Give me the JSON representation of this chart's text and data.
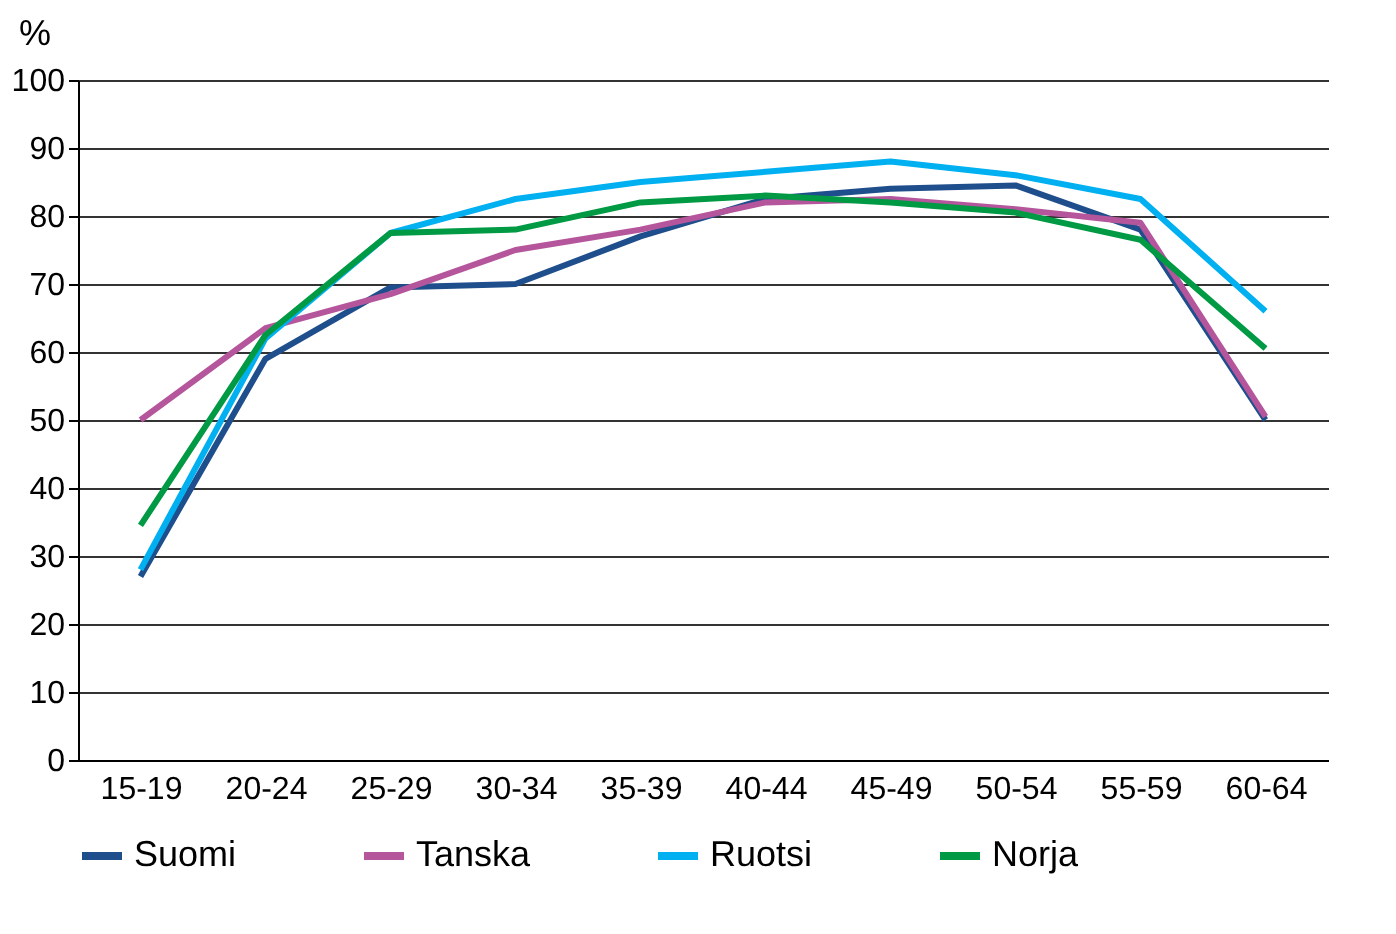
{
  "chart_data": {
    "type": "line",
    "ylabel": "%",
    "categories": [
      "15-19",
      "20-24",
      "25-29",
      "30-34",
      "35-39",
      "40-44",
      "45-49",
      "50-54",
      "55-59",
      "60-64"
    ],
    "series": [
      {
        "name": "Suomi",
        "color": "#1f4e8c",
        "values": [
          27,
          59,
          69.5,
          70,
          77,
          82.5,
          84,
          84.5,
          78,
          50
        ]
      },
      {
        "name": "Tanska",
        "color": "#b5569c",
        "values": [
          50,
          63.5,
          68.5,
          75,
          78,
          82,
          82.5,
          81,
          79,
          50.5
        ]
      },
      {
        "name": "Ruotsi",
        "color": "#00b0f0",
        "values": [
          28,
          62,
          77.5,
          82.5,
          85,
          86.5,
          88,
          86,
          82.5,
          66
        ]
      },
      {
        "name": "Norja",
        "color": "#009a44",
        "values": [
          34.5,
          62.5,
          77.5,
          78,
          82,
          83,
          82,
          80.5,
          76.5,
          60.5
        ]
      }
    ],
    "ylim": [
      0,
      100
    ],
    "yticks": [
      0,
      10,
      20,
      30,
      40,
      50,
      60,
      70,
      80,
      90,
      100
    ],
    "grid": "y",
    "legend": "bottom",
    "marker": "none",
    "line_style": "solid"
  }
}
